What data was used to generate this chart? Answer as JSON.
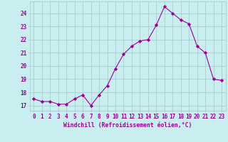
{
  "x": [
    0,
    1,
    2,
    3,
    4,
    5,
    6,
    7,
    8,
    9,
    10,
    11,
    12,
    13,
    14,
    15,
    16,
    17,
    18,
    19,
    20,
    21,
    22,
    23
  ],
  "y": [
    17.5,
    17.3,
    17.3,
    17.1,
    17.1,
    17.5,
    17.8,
    17.0,
    17.8,
    18.5,
    19.8,
    20.9,
    21.5,
    21.9,
    22.0,
    23.1,
    24.5,
    24.0,
    23.5,
    23.2,
    21.5,
    21.0,
    19.0,
    18.9
  ],
  "line_color": "#990099",
  "marker": "D",
  "marker_size": 2.2,
  "bg_color": "#c8eef0",
  "grid_color": "#aaccd0",
  "xlabel": "Windchill (Refroidissement éolien,°C)",
  "ylabel_ticks": [
    17,
    18,
    19,
    20,
    21,
    22,
    23,
    24
  ],
  "xlim": [
    -0.5,
    23.5
  ],
  "ylim": [
    16.6,
    24.9
  ],
  "tick_color": "#990099",
  "label_color": "#990099",
  "font_name": "monospace",
  "tick_fontsize": 5.5,
  "xlabel_fontsize": 5.8
}
